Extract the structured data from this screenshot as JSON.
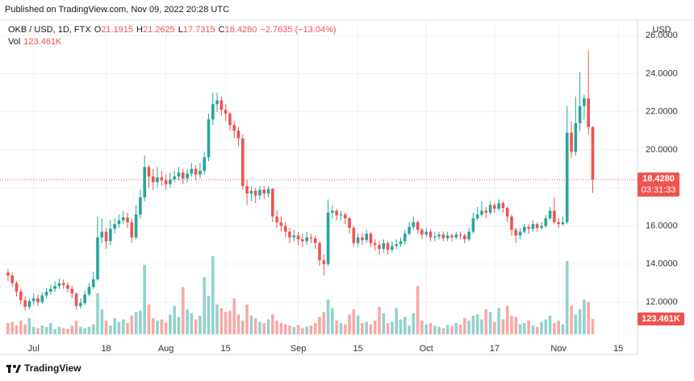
{
  "published": "Published on TradingView.com, Nov 09, 2022 20:28 UTC",
  "brand": "TradingView",
  "chart_data": {
    "type": "candlestick",
    "symbol": "OKB / USD, 1D, FTX",
    "ohlc_keys": [
      "O",
      "H",
      "L",
      "C"
    ],
    "ohlc_labels": [
      "21.1915",
      "21.2625",
      "17.7315",
      "18.4280"
    ],
    "change_label": "−2.7635 (−13.04%)",
    "volume_key": "Vol",
    "volume_label": "123.461K",
    "currency": "USD",
    "countdown": "03:31:33",
    "up_color": "#26a69a",
    "down_color": "#ef5350",
    "volume_up_color": "#92d2cc",
    "volume_down_color": "#f7a9a7",
    "grid": true,
    "xlim": [
      -1.5,
      147.5
    ],
    "xticks": [
      {
        "value": 6,
        "label": "Jul"
      },
      {
        "value": 23,
        "label": "18"
      },
      {
        "value": 37,
        "label": "Aug"
      },
      {
        "value": 51,
        "label": "15"
      },
      {
        "value": 68,
        "label": "Sep"
      },
      {
        "value": 82,
        "label": "15"
      },
      {
        "value": 98,
        "label": "Oct"
      },
      {
        "value": 114,
        "label": "17"
      },
      {
        "value": 129,
        "label": "Nov"
      },
      {
        "value": 143,
        "label": "15"
      }
    ],
    "ylim": [
      10.1,
      26.6
    ],
    "yticks": [
      {
        "value": 12,
        "label": "12.0000"
      },
      {
        "value": 14,
        "label": "14.0000"
      },
      {
        "value": 16,
        "label": "16.0000"
      },
      {
        "value": 18,
        "label": "18.0000"
      },
      {
        "value": 20,
        "label": "20.0000"
      },
      {
        "value": 22,
        "label": "22.0000"
      },
      {
        "value": 24,
        "label": "24.0000"
      },
      {
        "value": 26,
        "label": "26.0000"
      }
    ],
    "vlim": [
      0,
      2500
    ],
    "open": [
      13.55,
      13.4,
      13.0,
      12.55,
      12.1,
      11.75,
      12.05,
      12.2,
      12.0,
      12.35,
      12.55,
      12.7,
      12.85,
      13.0,
      12.9,
      12.7,
      12.45,
      11.8,
      11.95,
      12.4,
      12.8,
      13.2,
      15.4,
      15.7,
      15.2,
      15.85,
      16.1,
      16.3,
      16.45,
      16.2,
      15.4,
      16.6,
      17.5,
      19.1,
      18.6,
      18.3,
      18.55,
      18.4,
      18.2,
      18.45,
      18.6,
      18.8,
      18.5,
      18.75,
      19.0,
      18.7,
      18.9,
      19.6,
      21.6,
      22.4,
      22.6,
      22.1,
      21.9,
      21.3,
      21.0,
      20.6,
      18.1,
      17.7,
      17.85,
      17.6,
      17.9,
      17.7,
      17.95,
      16.5,
      16.2,
      16.0,
      15.7,
      15.4,
      15.5,
      15.3,
      15.2,
      15.4,
      15.35,
      15.1,
      14.2,
      14.0,
      16.7,
      16.8,
      16.55,
      16.6,
      16.4,
      15.9,
      15.1,
      15.4,
      15.25,
      15.6,
      15.1,
      15.0,
      14.8,
      15.1,
      14.75,
      14.95,
      15.05,
      15.2,
      15.6,
      15.95,
      16.2,
      15.8,
      15.55,
      15.7,
      15.4,
      15.45,
      15.55,
      15.35,
      15.5,
      15.4,
      15.55,
      15.5,
      15.3,
      15.7,
      16.4,
      16.6,
      16.8,
      16.7,
      17.1,
      16.9,
      17.2,
      16.95,
      16.5,
      15.8,
      15.5,
      15.7,
      15.95,
      15.85,
      16.1,
      15.9,
      16.0,
      16.4,
      16.8,
      16.2,
      16.1,
      16.2,
      20.9,
      19.9,
      21.4,
      22.3,
      22.7,
      21.1915
    ],
    "high": [
      13.75,
      13.55,
      13.1,
      12.7,
      12.3,
      12.2,
      12.45,
      12.4,
      12.5,
      12.75,
      12.9,
      13.1,
      13.25,
      13.2,
      13.05,
      12.85,
      12.5,
      12.2,
      12.6,
      13.0,
      13.6,
      16.5,
      16.4,
      15.9,
      16.3,
      16.4,
      16.6,
      16.8,
      16.7,
      16.4,
      17.1,
      17.9,
      19.7,
      19.2,
      19.0,
      19.1,
      18.9,
      18.7,
      18.8,
      18.9,
      19.1,
      19.0,
      19.0,
      19.3,
      19.2,
      19.3,
      19.9,
      21.9,
      23.0,
      23.0,
      22.8,
      22.4,
      22.0,
      21.5,
      21.2,
      20.8,
      18.4,
      18.1,
      18.0,
      18.1,
      18.1,
      18.1,
      18.0,
      16.8,
      16.5,
      16.2,
      15.9,
      15.8,
      15.7,
      15.6,
      15.7,
      15.6,
      15.5,
      15.2,
      14.5,
      17.4,
      17.1,
      16.9,
      16.8,
      16.7,
      16.5,
      16.0,
      15.6,
      15.6,
      15.8,
      15.7,
      15.3,
      15.2,
      15.3,
      15.2,
      15.2,
      15.3,
      15.4,
      15.8,
      16.2,
      16.5,
      16.3,
      15.9,
      15.9,
      15.8,
      15.7,
      15.7,
      15.7,
      15.7,
      15.6,
      15.7,
      15.7,
      15.6,
      15.9,
      16.7,
      17.0,
      17.3,
      17.0,
      17.3,
      17.2,
      17.4,
      17.3,
      17.0,
      16.6,
      15.9,
      15.9,
      16.1,
      16.1,
      16.3,
      16.2,
      16.2,
      16.6,
      17.0,
      17.5,
      16.4,
      16.5,
      22.3,
      21.5,
      22.8,
      24.1,
      22.9,
      25.2,
      21.2625
    ],
    "low": [
      13.1,
      12.8,
      12.3,
      11.9,
      11.55,
      11.6,
      11.85,
      11.8,
      11.9,
      12.2,
      12.4,
      12.55,
      12.7,
      12.7,
      12.5,
      12.2,
      11.6,
      11.65,
      11.85,
      12.3,
      12.7,
      13.1,
      15.1,
      14.8,
      15.0,
      15.6,
      15.9,
      16.1,
      15.9,
      15.1,
      15.3,
      16.4,
      17.3,
      18.0,
      17.9,
      18.0,
      18.1,
      17.9,
      18.0,
      18.3,
      18.4,
      18.2,
      18.3,
      18.6,
      18.4,
      18.5,
      18.7,
      19.4,
      21.3,
      22.0,
      21.8,
      21.5,
      21.0,
      20.6,
      20.2,
      17.9,
      17.1,
      17.3,
      17.2,
      17.4,
      17.4,
      17.5,
      16.2,
      15.9,
      15.7,
      15.4,
      15.1,
      15.2,
      15.0,
      14.9,
      15.0,
      15.1,
      14.8,
      13.9,
      13.4,
      13.9,
      16.4,
      16.3,
      16.3,
      16.1,
      15.6,
      14.9,
      14.9,
      15.0,
      15.1,
      14.9,
      14.7,
      14.5,
      14.6,
      14.5,
      14.6,
      14.8,
      14.9,
      15.0,
      15.5,
      15.8,
      15.6,
      15.3,
      15.4,
      15.2,
      15.2,
      15.3,
      15.2,
      15.2,
      15.2,
      15.3,
      15.3,
      15.1,
      15.2,
      15.6,
      16.3,
      16.5,
      16.4,
      16.6,
      16.7,
      16.8,
      16.7,
      16.2,
      15.5,
      15.1,
      15.3,
      15.6,
      15.6,
      15.7,
      15.7,
      15.8,
      15.9,
      16.3,
      16.1,
      15.9,
      16.0,
      16.1,
      19.6,
      19.7,
      21.0,
      21.6,
      20.8,
      17.7315
    ],
    "close": [
      13.4,
      13.0,
      12.55,
      12.1,
      11.75,
      12.05,
      12.2,
      12.0,
      12.35,
      12.55,
      12.7,
      12.85,
      13.0,
      12.9,
      12.7,
      12.45,
      11.8,
      11.95,
      12.4,
      12.8,
      13.2,
      15.4,
      15.7,
      15.2,
      15.85,
      16.1,
      16.3,
      16.45,
      16.2,
      15.4,
      16.6,
      17.5,
      19.1,
      18.6,
      18.3,
      18.55,
      18.4,
      18.2,
      18.45,
      18.6,
      18.8,
      18.5,
      18.75,
      19.0,
      18.7,
      18.9,
      19.6,
      21.6,
      22.4,
      22.6,
      22.1,
      21.9,
      21.3,
      21.0,
      20.6,
      18.1,
      17.7,
      17.85,
      17.6,
      17.9,
      17.7,
      17.95,
      16.5,
      16.2,
      16.0,
      15.7,
      15.4,
      15.5,
      15.3,
      15.2,
      15.4,
      15.35,
      15.1,
      14.2,
      14.0,
      16.7,
      16.8,
      16.55,
      16.6,
      16.4,
      15.9,
      15.1,
      15.4,
      15.25,
      15.6,
      15.1,
      15.0,
      14.8,
      15.1,
      14.75,
      14.95,
      15.05,
      15.2,
      15.6,
      15.95,
      16.2,
      15.8,
      15.55,
      15.7,
      15.4,
      15.45,
      15.55,
      15.35,
      15.5,
      15.4,
      15.55,
      15.5,
      15.3,
      15.7,
      16.4,
      16.6,
      16.8,
      16.7,
      17.1,
      16.9,
      17.2,
      16.95,
      16.5,
      15.8,
      15.5,
      15.7,
      15.95,
      15.85,
      16.1,
      15.9,
      16.0,
      16.4,
      16.8,
      16.2,
      16.1,
      16.2,
      20.9,
      19.9,
      21.4,
      22.3,
      22.7,
      21.1915,
      18.428
    ],
    "volume": [
      90,
      100,
      70,
      110,
      80,
      130,
      60,
      50,
      70,
      60,
      90,
      40,
      60,
      50,
      45,
      70,
      110,
      60,
      50,
      60,
      80,
      330,
      200,
      110,
      70,
      130,
      100,
      120,
      90,
      150,
      180,
      190,
      560,
      240,
      130,
      110,
      120,
      95,
      160,
      230,
      140,
      380,
      200,
      170,
      120,
      150,
      460,
      310,
      630,
      240,
      210,
      180,
      190,
      290,
      160,
      110,
      240,
      150,
      130,
      100,
      90,
      120,
      160,
      110,
      90,
      80,
      70,
      60,
      75,
      50,
      60,
      70,
      90,
      140,
      180,
      280,
      210,
      110,
      90,
      80,
      160,
      200,
      150,
      90,
      100,
      80,
      110,
      220,
      170,
      90,
      100,
      210,
      120,
      140,
      70,
      170,
      390,
      110,
      80,
      90,
      70,
      60,
      50,
      75,
      65,
      90,
      80,
      130,
      110,
      150,
      160,
      120,
      200,
      180,
      100,
      210,
      120,
      230,
      150,
      140,
      80,
      90,
      110,
      70,
      60,
      100,
      120,
      150,
      90,
      110,
      80,
      590,
      230,
      160,
      200,
      280,
      260,
      123.461
    ]
  }
}
